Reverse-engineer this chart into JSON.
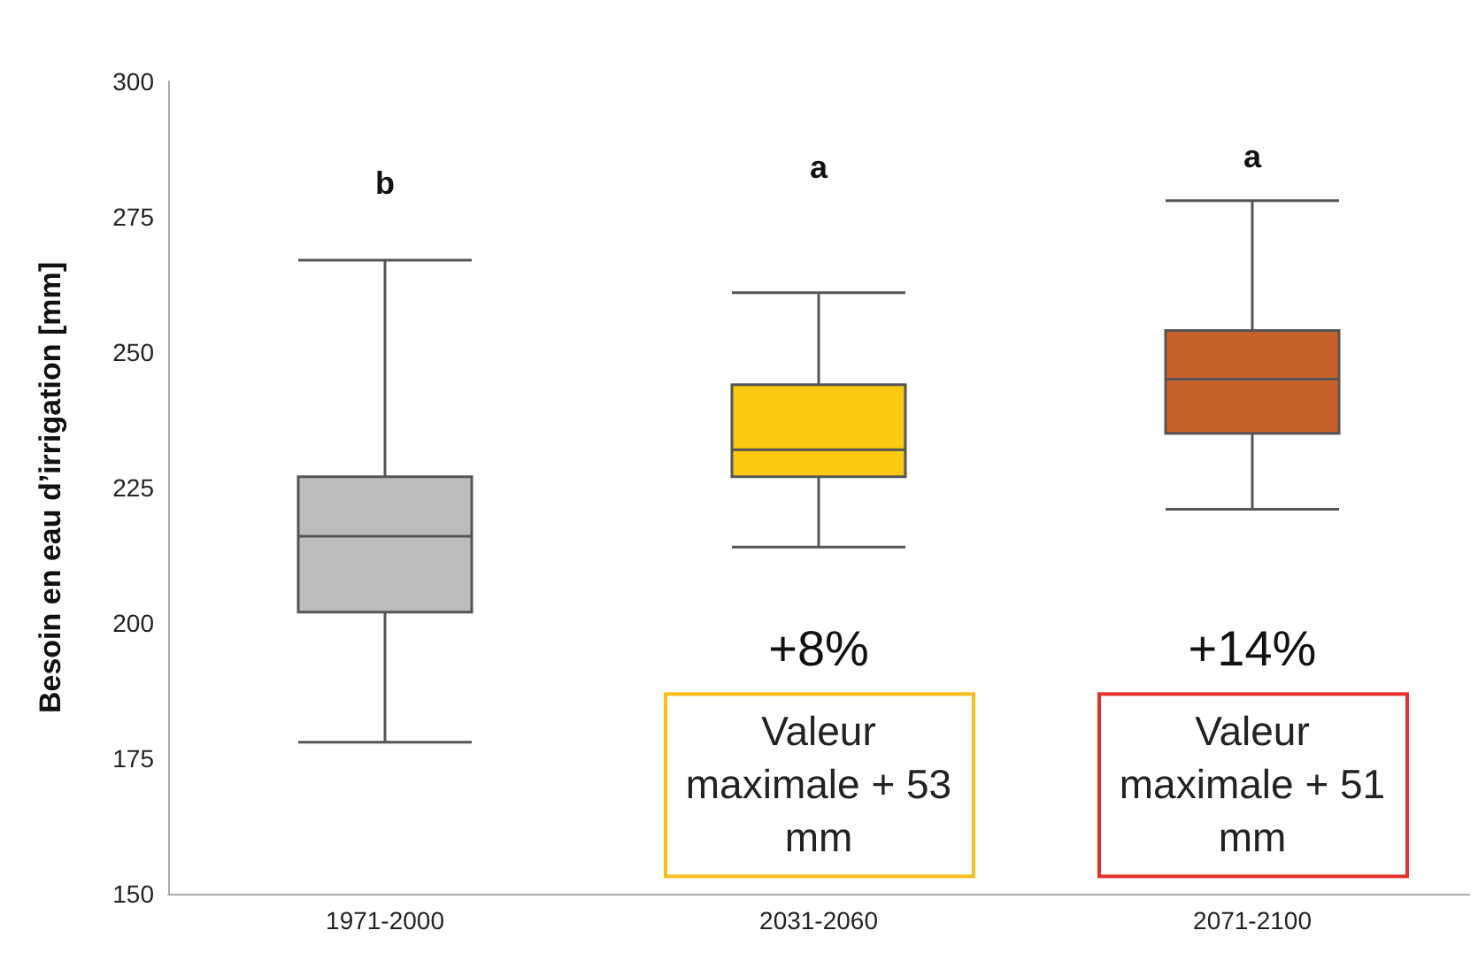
{
  "chart_data": {
    "type": "box",
    "ylabel": "Besoin en eau d’irrigation [mm]",
    "categories": [
      "1971-2000",
      "2031-2060",
      "2071-2100"
    ],
    "colors": [
      "#bcbcbc",
      "#fbc90f",
      "#c8602a"
    ],
    "boxes": [
      {
        "low": 178,
        "q1": 202,
        "median": 216,
        "q3": 227,
        "high": 267
      },
      {
        "low": 214,
        "q1": 227,
        "median": 232,
        "q3": 244,
        "high": 261
      },
      {
        "low": 221,
        "q1": 235,
        "median": 245,
        "q3": 254,
        "high": 278
      }
    ],
    "ylim": [
      150,
      300
    ],
    "yticks": [
      150,
      175,
      200,
      225,
      250,
      275,
      300
    ],
    "grid": false,
    "annotations": [
      "b",
      "a",
      "a",
      "+8%",
      "Valeur maximale + 53 mm",
      "+14%",
      "Valeur maximale + 51 mm"
    ]
  }
}
